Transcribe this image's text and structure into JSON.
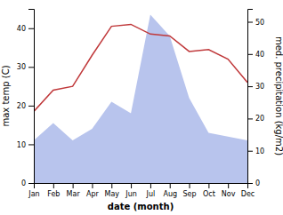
{
  "chart_data": {
    "type": "line",
    "xlabel": "date (month)",
    "ylabel": "max temp (C)",
    "y2label": "med. precipitation (kg/m2)",
    "categories": [
      "Jan",
      "Feb",
      "Mar",
      "Apr",
      "May",
      "Jun",
      "Jul",
      "Aug",
      "Sep",
      "Oct",
      "Nov",
      "Dec"
    ],
    "series": [
      {
        "type": "area",
        "color": "#b8c4ed",
        "values": [
          11,
          15.5,
          11,
          14,
          21,
          18,
          43.5,
          38,
          22,
          13,
          12,
          11
        ]
      },
      {
        "type": "line",
        "color": "#c0393b",
        "values": [
          18.5,
          24,
          25,
          33,
          40.5,
          41,
          38.5,
          38,
          34,
          34.5,
          32,
          26
        ]
      }
    ],
    "ylim": [
      0,
      45
    ],
    "yticks": [
      0,
      10,
      20,
      30,
      40
    ],
    "y2lim": [
      0,
      54
    ],
    "y2ticks": [
      0,
      10,
      20,
      30,
      40,
      50
    ],
    "grid": false
  }
}
